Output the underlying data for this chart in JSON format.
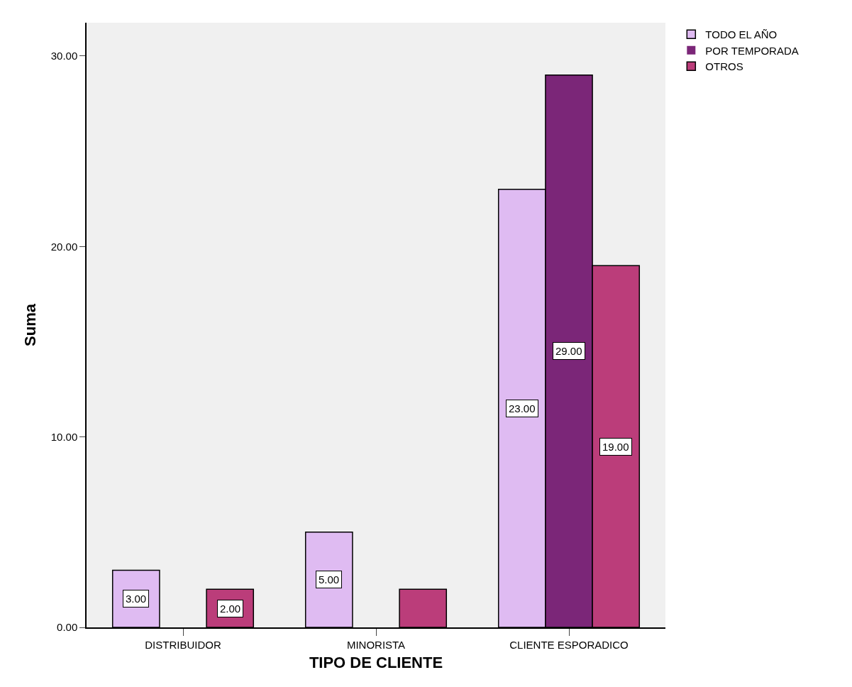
{
  "chart_data": {
    "type": "bar",
    "xlabel": "TIPO DE CLIENTE",
    "ylabel": "Suma",
    "categories": [
      "DISTRIBUIDOR",
      "MINORISTA",
      "CLIENTE ESPORADICO"
    ],
    "series": [
      {
        "name": "TODO EL AÑO",
        "color": "#dfbbf2",
        "values": [
          3,
          5,
          23
        ],
        "value_labels": [
          "3.00",
          "5.00",
          "23.00"
        ]
      },
      {
        "name": "POR TEMPORADA",
        "color": "#7b2678",
        "values": [
          0,
          0,
          29
        ],
        "value_labels": [
          null,
          null,
          "29.00"
        ]
      },
      {
        "name": "OTROS",
        "color": "#bb3d7a",
        "values": [
          2,
          2,
          19
        ],
        "value_labels": [
          "2.00",
          null,
          "19.00"
        ]
      }
    ],
    "ylim": [
      0,
      31.75
    ],
    "yticks": [
      {
        "value": 0,
        "label": "0.00"
      },
      {
        "value": 10,
        "label": "10.00"
      },
      {
        "value": 20,
        "label": "20.00"
      },
      {
        "value": 30,
        "label": "30.00"
      }
    ],
    "grid": false,
    "legend": "top right"
  }
}
